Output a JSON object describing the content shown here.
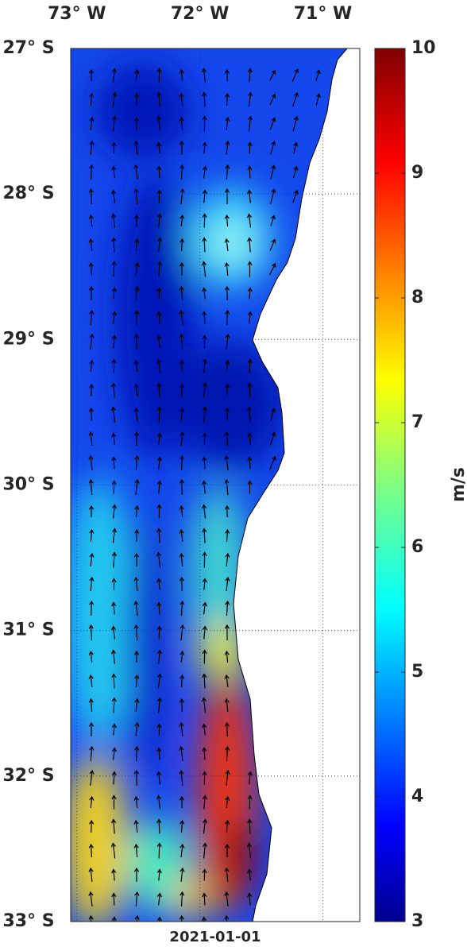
{
  "map": {
    "lon_ticks": [
      {
        "value": -73,
        "label": "73° W"
      },
      {
        "value": -72,
        "label": "72° W"
      },
      {
        "value": -71,
        "label": "71° W"
      }
    ],
    "lat_ticks": [
      {
        "value": -27,
        "label": "27° S"
      },
      {
        "value": -28,
        "label": "28° S"
      },
      {
        "value": -29,
        "label": "29° S"
      },
      {
        "value": -30,
        "label": "30° S"
      },
      {
        "value": -31,
        "label": "31° S"
      },
      {
        "value": -32,
        "label": "32° S"
      },
      {
        "value": -33,
        "label": "33° S"
      }
    ],
    "lon_lim": [
      -73.05,
      -70.7
    ],
    "lat_lim": [
      -33,
      -27
    ],
    "date": "2021-01-01"
  },
  "colorbar": {
    "label": "m/s",
    "lim": [
      3,
      10
    ],
    "ticks": [
      3,
      4,
      5,
      6,
      7,
      8,
      9,
      10
    ]
  }
}
